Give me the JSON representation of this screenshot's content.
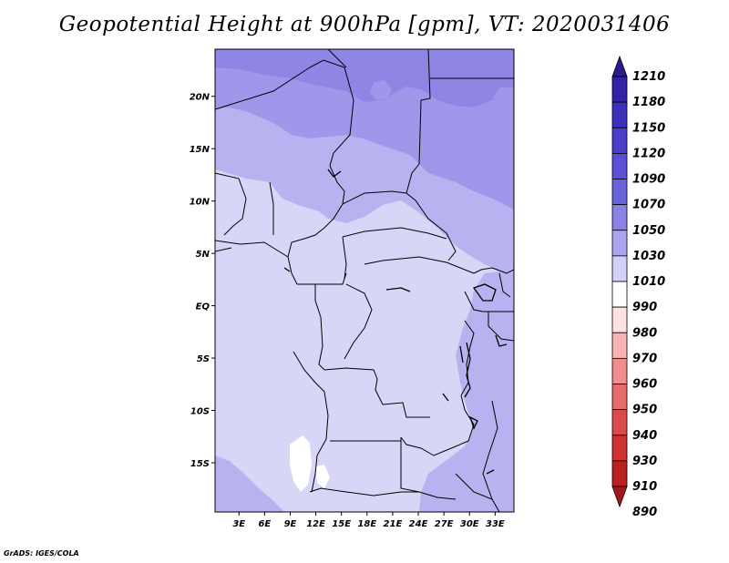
{
  "title": "Geopotential Height at 900hPa [gpm], VT: 2020031406",
  "credit": "GrADS: IGES/COLA",
  "map": {
    "lat_labels": [
      "20N",
      "15N",
      "10N",
      "5N",
      "EQ",
      "5S",
      "10S",
      "15S"
    ],
    "lat_values": [
      20,
      15,
      10,
      5,
      0,
      -5,
      -10,
      -15
    ],
    "lon_labels": [
      "3E",
      "6E",
      "9E",
      "12E",
      "15E",
      "18E",
      "21E",
      "24E",
      "27E",
      "30E",
      "33E"
    ],
    "lon_values": [
      3,
      6,
      9,
      12,
      15,
      18,
      21,
      24,
      27,
      30,
      33
    ],
    "lat_range": [
      -19.7,
      24.5
    ],
    "lon_range": [
      0.2,
      35.2
    ]
  },
  "colorbar": {
    "labels": [
      "1210",
      "1180",
      "1150",
      "1120",
      "1090",
      "1070",
      "1050",
      "1030",
      "1010",
      "990",
      "980",
      "970",
      "960",
      "950",
      "940",
      "930",
      "910",
      "890"
    ],
    "colors": [
      "#2a1b8e",
      "#3322a6",
      "#3d2fbc",
      "#4a3dcc",
      "#5a4fd6",
      "#6b62de",
      "#8a82e6",
      "#aaa4ee",
      "#d2d0f8",
      "#ffffff",
      "#fde0e0",
      "#f8b4b4",
      "#f08e8e",
      "#e66c6c",
      "#dc4b4b",
      "#cf3232",
      "#b92020",
      "#a31818"
    ]
  },
  "field_colors": {
    "c1010": "#d8d6f6",
    "c1030": "#b8b2f0",
    "c1050": "#9f97ea",
    "c1070": "#8e85e4",
    "c990": "#ffffff"
  }
}
